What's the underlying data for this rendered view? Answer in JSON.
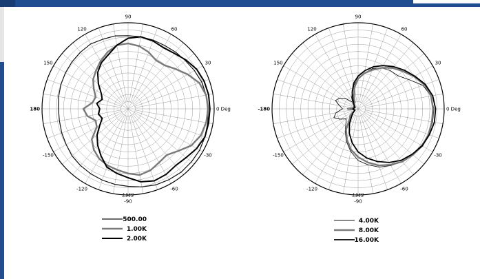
{
  "chart_data": [
    {
      "type": "polar",
      "angle_ticks": [
        "0 Deg",
        "30",
        "60",
        "90",
        "120",
        "150",
        "180",
        "-150",
        "-120",
        "-90",
        "-60",
        "-30"
      ],
      "radial_grid": "concentric rings + radial spokes",
      "logo_text": "LMS",
      "series": [
        {
          "name": "500.00",
          "style": {
            "color": "#111111",
            "width": 1.2
          },
          "r": [
            0.93,
            0.92,
            0.91,
            0.89,
            0.87,
            0.86,
            0.85,
            0.85,
            0.85,
            0.85,
            0.86,
            0.86,
            0.87,
            0.86,
            0.85,
            0.84,
            0.83,
            0.82,
            0.81,
            0.81,
            0.82,
            0.83,
            0.85,
            0.86,
            0.87,
            0.88,
            0.89,
            0.9,
            0.92,
            0.94,
            0.95,
            0.96,
            0.96,
            0.96,
            0.95,
            0.94
          ]
        },
        {
          "name": "1.00K",
          "style": {
            "color": "#7a7a7a",
            "width": 2.4
          },
          "r": [
            0.93,
            0.92,
            0.88,
            0.8,
            0.72,
            0.66,
            0.65,
            0.7,
            0.74,
            0.76,
            0.75,
            0.7,
            0.64,
            0.58,
            0.53,
            0.46,
            0.4,
            0.42,
            0.52,
            0.48,
            0.4,
            0.42,
            0.55,
            0.62,
            0.67,
            0.7,
            0.72,
            0.75,
            0.78,
            0.76,
            0.72,
            0.7,
            0.76,
            0.85,
            0.9,
            0.92
          ]
        },
        {
          "name": "2.00K",
          "style": {
            "color": "#000000",
            "width": 2.0
          },
          "r": [
            0.95,
            0.95,
            0.94,
            0.92,
            0.88,
            0.84,
            0.82,
            0.84,
            0.85,
            0.82,
            0.75,
            0.67,
            0.62,
            0.55,
            0.45,
            0.36,
            0.32,
            0.37,
            0.33,
            0.35,
            0.32,
            0.38,
            0.47,
            0.55,
            0.63,
            0.72,
            0.76,
            0.8,
            0.86,
            0.89,
            0.88,
            0.86,
            0.88,
            0.92,
            0.95,
            0.95
          ]
        }
      ]
    },
    {
      "type": "polar",
      "angle_ticks": [
        "0 Deg",
        "30",
        "60",
        "90",
        "120",
        "150",
        "-180",
        "-150",
        "-120",
        "-90",
        "-60",
        "-30"
      ],
      "radial_grid": "concentric rings + radial spokes",
      "logo_text": "LMS",
      "series": [
        {
          "name": "4.00K",
          "style": {
            "color": "#111111",
            "width": 0.9
          },
          "r": [
            0.88,
            0.86,
            0.8,
            0.68,
            0.6,
            0.58,
            0.55,
            0.5,
            0.42,
            0.35,
            0.28,
            0.2,
            0.15,
            0.1,
            0.18,
            0.25,
            0.28,
            0.22,
            0.18,
            0.26,
            0.3,
            0.24,
            0.18,
            0.22,
            0.3,
            0.4,
            0.5,
            0.6,
            0.66,
            0.72,
            0.76,
            0.8,
            0.82,
            0.85,
            0.87,
            0.88
          ]
        },
        {
          "name": "8.00K",
          "style": {
            "color": "#7a7a7a",
            "width": 2.4
          },
          "r": [
            0.87,
            0.86,
            0.82,
            0.75,
            0.68,
            0.62,
            0.55,
            0.48,
            0.42,
            0.35,
            0.25,
            0.14,
            0.08,
            0.1,
            0.05,
            0.04,
            0.06,
            0.05,
            0.12,
            0.05,
            0.04,
            0.06,
            0.12,
            0.15,
            0.28,
            0.38,
            0.48,
            0.56,
            0.63,
            0.7,
            0.75,
            0.8,
            0.83,
            0.86,
            0.87,
            0.87
          ]
        },
        {
          "name": "16.00K",
          "style": {
            "color": "#000000",
            "width": 1.8
          },
          "r": [
            0.9,
            0.88,
            0.83,
            0.76,
            0.7,
            0.64,
            0.58,
            0.52,
            0.45,
            0.38,
            0.3,
            0.2,
            0.12,
            0.08,
            0.06,
            0.05,
            0.04,
            0.05,
            0.06,
            0.05,
            0.04,
            0.05,
            0.08,
            0.12,
            0.2,
            0.3,
            0.4,
            0.5,
            0.58,
            0.65,
            0.72,
            0.78,
            0.82,
            0.86,
            0.88,
            0.9
          ]
        }
      ]
    }
  ]
}
